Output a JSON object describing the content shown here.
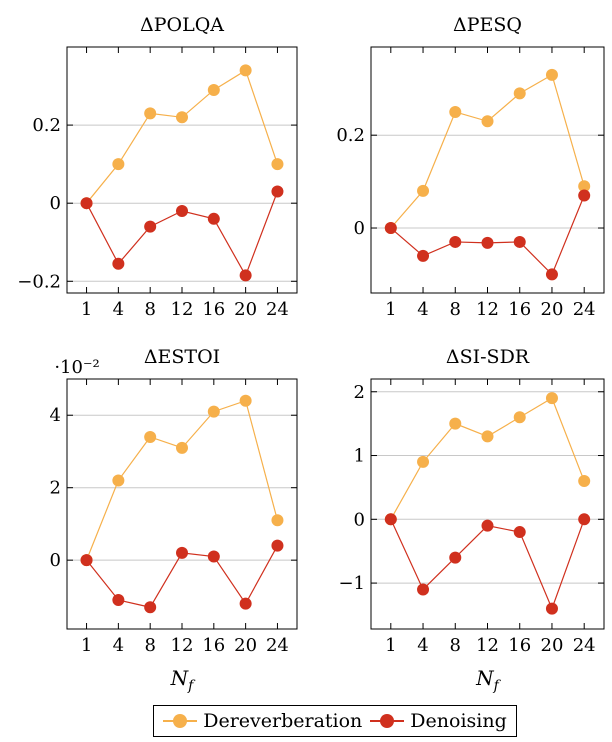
{
  "colors": {
    "dereverberation": "#f6b04b",
    "denoising": "#d0301e",
    "grid": "#c8c8c8",
    "axis": "#000000"
  },
  "legend": {
    "items": [
      {
        "label": "Dereverberation",
        "color": "#f6b04b"
      },
      {
        "label": "Denoising",
        "color": "#d0301e"
      }
    ]
  },
  "chart_data": [
    {
      "type": "line",
      "title": "ΔPOLQA",
      "xlabel": "",
      "ylabel": "",
      "categories": [
        "1",
        "4",
        "8",
        "12",
        "16",
        "20",
        "24"
      ],
      "ylim": [
        -0.23,
        0.4
      ],
      "yticks": [
        -0.2,
        0,
        0.2
      ],
      "ytick_labels": [
        "−0.2",
        "0",
        "0.2"
      ],
      "grid": true,
      "series": [
        {
          "name": "Dereverberation",
          "values": [
            0,
            0.1,
            0.23,
            0.22,
            0.29,
            0.34,
            0.1
          ]
        },
        {
          "name": "Denoising",
          "values": [
            0,
            -0.155,
            -0.06,
            -0.02,
            -0.04,
            -0.185,
            0.03
          ]
        }
      ]
    },
    {
      "type": "line",
      "title": "ΔPESQ",
      "xlabel": "",
      "ylabel": "",
      "categories": [
        "1",
        "4",
        "8",
        "12",
        "16",
        "20",
        "24"
      ],
      "ylim": [
        -0.14,
        0.39
      ],
      "yticks": [
        0,
        0.2
      ],
      "ytick_labels": [
        "0",
        "0.2"
      ],
      "grid": true,
      "series": [
        {
          "name": "Dereverberation",
          "values": [
            0,
            0.08,
            0.25,
            0.23,
            0.29,
            0.33,
            0.09
          ]
        },
        {
          "name": "Denoising",
          "values": [
            0,
            -0.06,
            -0.03,
            -0.032,
            -0.03,
            -0.1,
            0.07
          ]
        }
      ]
    },
    {
      "type": "line",
      "title": "ΔESTOI",
      "scale_label": "·10⁻²",
      "xlabel": "",
      "ylabel": "",
      "categories": [
        "1",
        "4",
        "8",
        "12",
        "16",
        "20",
        "24"
      ],
      "ylim": [
        -1.9,
        5.0
      ],
      "yticks": [
        0,
        2,
        4
      ],
      "ytick_labels": [
        "0",
        "2",
        "4"
      ],
      "grid": true,
      "series": [
        {
          "name": "Dereverberation",
          "values": [
            0,
            2.2,
            3.4,
            3.1,
            4.1,
            4.4,
            1.1
          ]
        },
        {
          "name": "Denoising",
          "values": [
            0,
            -1.1,
            -1.3,
            0.2,
            0.1,
            -1.2,
            0.4
          ]
        }
      ]
    },
    {
      "type": "line",
      "title": "ΔSI-SDR",
      "xlabel": "",
      "ylabel": "",
      "categories": [
        "1",
        "4",
        "8",
        "12",
        "16",
        "20",
        "24"
      ],
      "ylim": [
        -1.72,
        2.2
      ],
      "yticks": [
        -1,
        0,
        1,
        2
      ],
      "ytick_labels": [
        "−1",
        "0",
        "1",
        "2"
      ],
      "grid": true,
      "series": [
        {
          "name": "Dereverberation",
          "values": [
            0,
            0.9,
            1.5,
            1.3,
            1.6,
            1.9,
            0.6
          ]
        },
        {
          "name": "Denoising",
          "values": [
            0,
            -1.1,
            -0.6,
            -0.1,
            -0.2,
            -1.4,
            0
          ]
        }
      ]
    }
  ],
  "shared_xlabel": "N_f"
}
